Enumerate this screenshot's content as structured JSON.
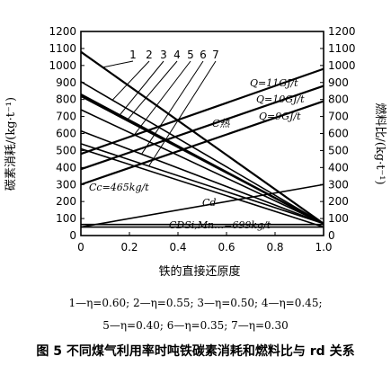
{
  "chart_data": {
    "type": "line",
    "xlabel": "铁的直接还原度",
    "ylabel_left": "碳素消耗/(kg·t⁻¹)",
    "ylabel_right": "燃料比/(kg·t⁻¹)",
    "xlim": [
      0,
      1.0
    ],
    "ylim": [
      0,
      1200
    ],
    "xticks": [
      "0",
      "0.2",
      "0.4",
      "0.6",
      "0.8",
      "1.0"
    ],
    "yticks": [
      "0",
      "100",
      "200",
      "300",
      "400",
      "500",
      "600",
      "700",
      "800",
      "900",
      "1000",
      "1100",
      "1200"
    ],
    "series": [
      {
        "name": "1",
        "x": [
          0,
          1.0
        ],
        "y": [
          1080,
          70
        ]
      },
      {
        "name": "2",
        "x": [
          0,
          1.0
        ],
        "y": [
          905,
          70
        ]
      },
      {
        "name": "3",
        "x": [
          0,
          1.0
        ],
        "y": [
          830,
          70
        ]
      },
      {
        "name": "4",
        "x": [
          0,
          1.0
        ],
        "y": [
          820,
          70
        ]
      },
      {
        "name": "5",
        "x": [
          0,
          1.0
        ],
        "y": [
          740,
          70
        ]
      },
      {
        "name": "6",
        "x": [
          0,
          1.0
        ],
        "y": [
          615,
          70
        ]
      },
      {
        "name": "7",
        "x": [
          0,
          1.0
        ],
        "y": [
          540,
          70
        ]
      },
      {
        "name": "Q=11GJ/t",
        "x": [
          0,
          1.0
        ],
        "y": [
          480,
          980
        ]
      },
      {
        "name": "Q=10GJ/t",
        "x": [
          0,
          1.0
        ],
        "y": [
          390,
          880
        ]
      },
      {
        "name": "Q=9GJ/t",
        "x": [
          0,
          1.0
        ],
        "y": [
          300,
          790
        ]
      },
      {
        "name": "C热",
        "x": [
          0,
          1.0
        ],
        "y": [
          510,
          50
        ]
      },
      {
        "name": "Cd",
        "x": [
          0,
          1.0
        ],
        "y": [
          50,
          300
        ]
      },
      {
        "name": "Cc",
        "x": [
          0,
          1.0
        ],
        "y": [
          50,
          50
        ]
      },
      {
        "name": "CDSi,Mn",
        "x": [
          0,
          1.0
        ],
        "y": [
          65,
          65
        ]
      }
    ],
    "annotations": {
      "numbers": [
        "1",
        "2",
        "3",
        "4",
        "5",
        "6",
        "7"
      ],
      "q11": "Q=11GJ/t",
      "q10": "Q=10GJ/t",
      "q9": "Q=9GJ/t",
      "c_heat": "C热",
      "cc": "Cc=465kg/t",
      "cd": "Cd",
      "cdsi": "CDSi,Mn…=699kg/t"
    }
  },
  "legend": {
    "line1": "1—η=0.60; 2—η=0.55; 3—η=0.50; 4—η=0.45;",
    "line2": "5—η=0.40; 6—η=0.35; 7—η=0.30"
  },
  "caption": "图 5 不同煤气利用率时吨铁碳素消耗和燃料比与 rd 关系"
}
